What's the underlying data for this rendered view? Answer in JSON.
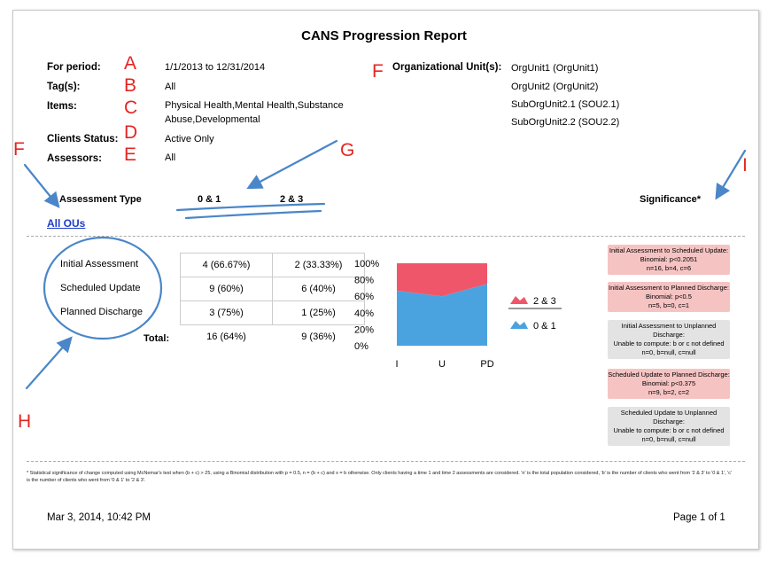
{
  "report": {
    "title": "CANS Progression Report",
    "for_period_label": "For period:",
    "for_period_value": "1/1/2013 to 12/31/2014",
    "tags_label": "Tag(s):",
    "tags_value": "All",
    "items_label": "Items:",
    "items_value_line1": "Physical Health,Mental Health,Substance",
    "items_value_line2": "Abuse,Developmental",
    "clients_status_label": "Clients Status:",
    "clients_status_value": "Active Only",
    "assessors_label": "Assessors:",
    "assessors_value": "All",
    "org_units_label": "Organizational Unit(s):",
    "org_units": [
      "OrgUnit1 (OrgUnit1)",
      "OrgUnit2 (OrgUnit2)",
      "SubOrgUnit2.1 (SOU2.1)",
      "SubOrgUnit2.2 (SOU2.2)"
    ]
  },
  "annotations": {
    "A": "A",
    "B": "B",
    "C": "C",
    "D": "D",
    "E": "E",
    "F": "F",
    "F_left": "F",
    "G": "G",
    "H": "H",
    "I": "I",
    "color": "#e52521",
    "arrow_color": "#4a86c8"
  },
  "table_header": {
    "assessment_type": "Assessment Type",
    "col1": "0 & 1",
    "col2": "2 & 3",
    "significance": "Significance*",
    "all_ous": "All OUs"
  },
  "rows": [
    {
      "label": "Initial Assessment",
      "c1": "4 (66.67%)",
      "c2": "2 (33.33%)"
    },
    {
      "label": "Scheduled Update",
      "c1": "9 (60%)",
      "c2": "6 (40%)"
    },
    {
      "label": "Planned Discharge",
      "c1": "3 (75%)",
      "c2": "1 (25%)"
    }
  ],
  "total": {
    "label": "Total:",
    "c1": "16 (64%)",
    "c2": "9 (36%)"
  },
  "chart_data": {
    "type": "area",
    "stacked": "percent",
    "categories": [
      "I",
      "U",
      "PD"
    ],
    "y_ticks": [
      "100%",
      "80%",
      "60%",
      "40%",
      "20%",
      "0%"
    ],
    "ylim": [
      0,
      100
    ],
    "series": [
      {
        "name": "0 & 1",
        "values": [
          66.67,
          60,
          75
        ],
        "color": "#4aa3df"
      },
      {
        "name": "2 & 3",
        "values": [
          33.33,
          40,
          25
        ],
        "color": "#f0566a"
      }
    ],
    "legend_placement": "right"
  },
  "significance": [
    {
      "lines": [
        "Initial Assessment to Scheduled Update:",
        "Binomial: p<0.2051",
        "n=16, b=4, c=6"
      ],
      "color": "red"
    },
    {
      "lines": [
        "Initial Assessment to Planned Discharge:",
        "Binomial: p<0.5",
        "n=5, b=0, c=1"
      ],
      "color": "red"
    },
    {
      "lines": [
        "Initial Assessment to Unplanned",
        "Discharge:",
        "Unable to compute: b or c not defined",
        "n=0, b=null, c=null"
      ],
      "color": "gray"
    },
    {
      "lines": [
        "Scheduled Update to Planned Discharge:",
        "Binomial: p<0.375",
        "n=9, b=2, c=2"
      ],
      "color": "red"
    },
    {
      "lines": [
        "Scheduled Update to Unplanned",
        "Discharge:",
        "Unable to compute: b or c not defined",
        "n=0, b=null, c=null"
      ],
      "color": "gray"
    }
  ],
  "footnote": "* Statistical significance of change computed using McNemar's test when (b + c) > 25, using a Binomial distribution with p = 0.5, n = (b + c) and x = b otherwise. Only clients having a time 1 and time 2 assessments are considered. 'n' is the total population considered, 'b' is the number of clients who went from '2 & 3' to '0 & 1', 'c' is the number of clients who went from '0 & 1' to '2 & 3'.",
  "footer": {
    "date": "Mar 3, 2014, 10:42 PM",
    "page": "Page 1 of 1"
  }
}
